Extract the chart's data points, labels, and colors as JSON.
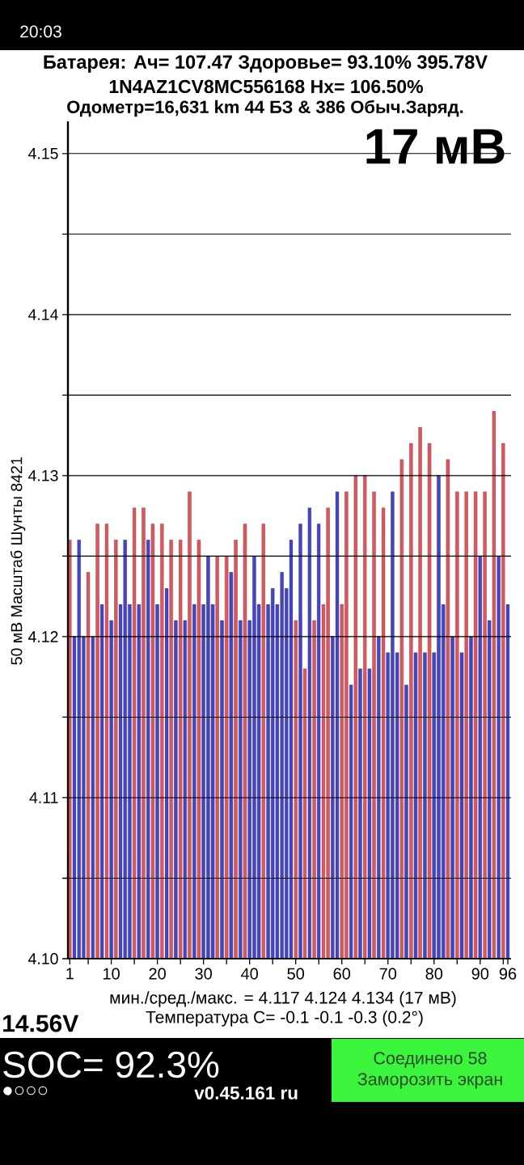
{
  "chart_data": {
    "type": "bar",
    "title": "Батарея: Ач= 107.47 Здоровье= 93.10% 395.78V",
    "subtitle": "1N4AZ1CV8MC556168 Hx= 106.50%",
    "ylabel": "50 мВ Масштаб Шунты 8421",
    "x": [
      1,
      2,
      3,
      4,
      5,
      6,
      7,
      8,
      9,
      10,
      11,
      12,
      13,
      14,
      15,
      16,
      17,
      18,
      19,
      20,
      21,
      22,
      23,
      24,
      25,
      26,
      27,
      28,
      29,
      30,
      31,
      32,
      33,
      34,
      35,
      36,
      37,
      38,
      39,
      40,
      41,
      42,
      43,
      44,
      45,
      46,
      47,
      48,
      49,
      50,
      51,
      52,
      53,
      54,
      55,
      56,
      57,
      58,
      59,
      60,
      61,
      62,
      63,
      64,
      65,
      66,
      67,
      68,
      69,
      70,
      71,
      72,
      73,
      74,
      75,
      76,
      77,
      78,
      79,
      80,
      81,
      82,
      83,
      84,
      85,
      86,
      87,
      88,
      89,
      90,
      91,
      92,
      93,
      94,
      95,
      96
    ],
    "values": [
      4.126,
      4.12,
      4.126,
      4.12,
      4.124,
      4.12,
      4.127,
      4.122,
      4.127,
      4.121,
      4.126,
      4.122,
      4.126,
      4.122,
      4.128,
      4.122,
      4.128,
      4.126,
      4.127,
      4.122,
      4.127,
      4.123,
      4.126,
      4.121,
      4.126,
      4.121,
      4.129,
      4.122,
      4.126,
      4.122,
      4.125,
      4.122,
      4.125,
      4.121,
      4.125,
      4.124,
      4.126,
      4.121,
      4.127,
      4.121,
      4.125,
      4.122,
      4.127,
      4.122,
      4.123,
      4.122,
      4.124,
      4.123,
      4.126,
      4.121,
      4.127,
      4.118,
      4.128,
      4.121,
      4.127,
      4.122,
      4.128,
      4.12,
      4.129,
      4.122,
      4.129,
      4.117,
      4.13,
      4.118,
      4.13,
      4.118,
      4.129,
      4.12,
      4.128,
      4.119,
      4.129,
      4.119,
      4.131,
      4.117,
      4.132,
      4.119,
      4.133,
      4.119,
      4.132,
      4.119,
      4.13,
      4.122,
      4.131,
      4.12,
      4.129,
      4.119,
      4.129,
      4.12,
      4.129,
      4.125,
      4.129,
      4.121,
      4.134,
      4.125,
      4.132,
      4.122
    ],
    "colors": [
      "#d9575e",
      "#4545c4",
      "#4545c4",
      "#4545c4",
      "#d9575e",
      "#4545c4",
      "#d9575e",
      "#4545c4",
      "#d9575e",
      "#4545c4",
      "#d9575e",
      "#4545c4",
      "#4545c4",
      "#4545c4",
      "#d9575e",
      "#4545c4",
      "#d9575e",
      "#4545c4",
      "#d9575e",
      "#4545c4",
      "#d9575e",
      "#4545c4",
      "#d9575e",
      "#4545c4",
      "#d9575e",
      "#4545c4",
      "#d9575e",
      "#4545c4",
      "#d9575e",
      "#4545c4",
      "#4545c4",
      "#4545c4",
      "#d9575e",
      "#4545c4",
      "#d9575e",
      "#4545c4",
      "#d9575e",
      "#4545c4",
      "#d9575e",
      "#4545c4",
      "#4545c4",
      "#4545c4",
      "#d9575e",
      "#4545c4",
      "#4545c4",
      "#4545c4",
      "#4545c4",
      "#4545c4",
      "#4545c4",
      "#d9575e",
      "#4545c4",
      "#d9575e",
      "#4545c4",
      "#d9575e",
      "#4545c4",
      "#d9575e",
      "#d9575e",
      "#4545c4",
      "#4545c4",
      "#d9575e",
      "#d9575e",
      "#4545c4",
      "#d9575e",
      "#4545c4",
      "#d9575e",
      "#4545c4",
      "#d9575e",
      "#4545c4",
      "#d9575e",
      "#4545c4",
      "#4545c4",
      "#4545c4",
      "#d9575e",
      "#4545c4",
      "#d9575e",
      "#4545c4",
      "#d9575e",
      "#4545c4",
      "#d9575e",
      "#4545c4",
      "#4545c4",
      "#4545c4",
      "#d9575e",
      "#4545c4",
      "#d9575e",
      "#4545c4",
      "#d9575e",
      "#4545c4",
      "#d9575e",
      "#4545c4",
      "#d9575e",
      "#4545c4",
      "#d9575e",
      "#4545c4",
      "#d9575e",
      "#4545c4"
    ],
    "xlim": [
      0.6,
      96.7
    ],
    "ylim": [
      4.1,
      4.152
    ],
    "xticks": [
      1,
      {
        "value": 5,
        "label": null
      },
      10,
      {
        "value": 15,
        "label": null
      },
      20,
      {
        "value": 25,
        "label": null
      },
      30,
      {
        "value": 35,
        "label": null
      },
      40,
      {
        "value": 45,
        "label": null
      },
      50,
      {
        "value": 55,
        "label": null
      },
      60,
      {
        "value": 65,
        "label": null
      },
      70,
      {
        "value": 75,
        "label": null
      },
      80,
      {
        "value": 85,
        "label": null
      },
      90,
      {
        "value": 95,
        "label": null
      },
      96
    ],
    "yticks": [
      {
        "value": 4.1,
        "label": "4.10"
      },
      {
        "value": 4.105,
        "label": null
      },
      4.11,
      {
        "value": 4.115,
        "label": null
      },
      4.12,
      {
        "value": 4.125,
        "label": null
      },
      4.13,
      {
        "value": 4.135,
        "label": null
      },
      4.14,
      {
        "value": 4.145,
        "label": null
      },
      4.15
    ],
    "grid": "y",
    "annotations": [
      "Одометр=16,631 km 44 БЗ & 386 Обыч.Заряд.",
      "17 мВ",
      "мин./сред./макс. = 4.117 4.124 4.134 (17 мВ)",
      "Температура C= -0.1 -0.1 -0.3 (0.2°)",
      "14.56V",
      "SOC= 92.3%",
      "●○○○",
      "v0.45.161 ru",
      "Соединено 58",
      "Заморозить экран",
      "20:03"
    ]
  }
}
